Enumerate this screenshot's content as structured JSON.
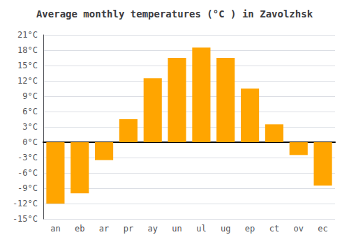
{
  "chart_data": {
    "type": "bar",
    "title": "Average monthly temperatures (°C ) in Zavolzhsk",
    "categories": [
      "an",
      "eb",
      "ar",
      "pr",
      "ay",
      "un",
      "ul",
      "ug",
      "ep",
      "ct",
      "ov",
      "ec"
    ],
    "values": [
      -12,
      -10,
      -3.5,
      4.5,
      12.5,
      16.5,
      18.5,
      16.5,
      10.5,
      3.5,
      -2.5,
      -8.5
    ],
    "color": "#FFA500",
    "ylim": [
      -15,
      21
    ],
    "yticks": [
      {
        "value": -15,
        "label": "-15°C"
      },
      {
        "value": -12,
        "label": "-12°C"
      },
      {
        "value": -9,
        "label": "-9°C"
      },
      {
        "value": -6,
        "label": "-6°C"
      },
      {
        "value": -3,
        "label": "-3°C"
      },
      {
        "value": 0,
        "label": "0°C"
      },
      {
        "value": 3,
        "label": "3°C"
      },
      {
        "value": 6,
        "label": "6°C"
      },
      {
        "value": 9,
        "label": "9°C"
      },
      {
        "value": 12,
        "label": "12°C"
      },
      {
        "value": 15,
        "label": "15°C"
      },
      {
        "value": 18,
        "label": "18°C"
      },
      {
        "value": 21,
        "label": "21°C"
      }
    ],
    "grid": true
  }
}
